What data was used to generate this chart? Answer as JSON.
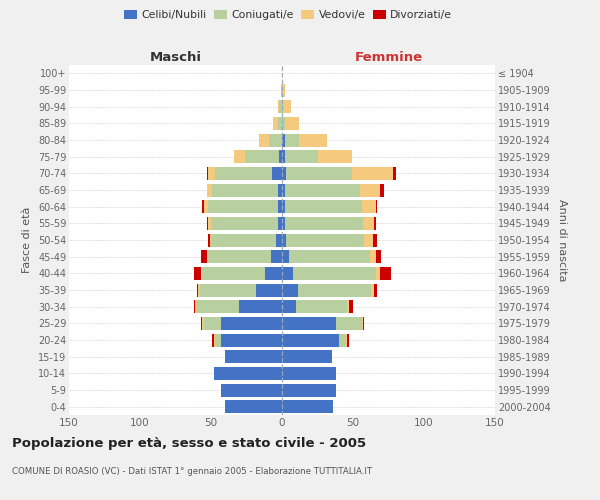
{
  "age_groups": [
    "0-4",
    "5-9",
    "10-14",
    "15-19",
    "20-24",
    "25-29",
    "30-34",
    "35-39",
    "40-44",
    "45-49",
    "50-54",
    "55-59",
    "60-64",
    "65-69",
    "70-74",
    "75-79",
    "80-84",
    "85-89",
    "90-94",
    "95-99",
    "100+"
  ],
  "birth_years": [
    "2000-2004",
    "1995-1999",
    "1990-1994",
    "1985-1989",
    "1980-1984",
    "1975-1979",
    "1970-1974",
    "1965-1969",
    "1960-1964",
    "1955-1959",
    "1950-1954",
    "1945-1949",
    "1940-1944",
    "1935-1939",
    "1930-1934",
    "1925-1929",
    "1920-1924",
    "1915-1919",
    "1910-1914",
    "1905-1909",
    "≤ 1904"
  ],
  "male_celibe": [
    40,
    43,
    48,
    40,
    43,
    43,
    30,
    18,
    12,
    8,
    4,
    3,
    3,
    3,
    7,
    2,
    0,
    0,
    0,
    0,
    0
  ],
  "male_coniugato": [
    0,
    0,
    0,
    0,
    4,
    12,
    30,
    40,
    44,
    45,
    46,
    47,
    49,
    46,
    40,
    24,
    9,
    3,
    2,
    1,
    0
  ],
  "male_vedovo": [
    0,
    0,
    0,
    0,
    1,
    1,
    1,
    1,
    1,
    0,
    1,
    2,
    3,
    4,
    5,
    8,
    7,
    3,
    1,
    0,
    0
  ],
  "male_divorziato": [
    0,
    0,
    0,
    0,
    1,
    1,
    1,
    1,
    5,
    4,
    1,
    1,
    1,
    0,
    1,
    0,
    0,
    0,
    0,
    0,
    0
  ],
  "female_celibe": [
    36,
    38,
    38,
    35,
    40,
    38,
    10,
    11,
    8,
    5,
    3,
    2,
    2,
    2,
    3,
    2,
    2,
    0,
    0,
    0,
    0
  ],
  "female_coniugata": [
    0,
    0,
    0,
    0,
    5,
    18,
    36,
    52,
    58,
    57,
    55,
    55,
    54,
    53,
    46,
    23,
    10,
    2,
    1,
    0,
    0
  ],
  "female_vedova": [
    0,
    0,
    0,
    0,
    1,
    1,
    1,
    2,
    3,
    4,
    6,
    8,
    10,
    14,
    29,
    24,
    20,
    10,
    5,
    2,
    0
  ],
  "female_divorziata": [
    0,
    0,
    0,
    0,
    1,
    1,
    3,
    2,
    8,
    4,
    3,
    1,
    1,
    3,
    2,
    0,
    0,
    0,
    0,
    0,
    0
  ],
  "color_celibe": "#4472c4",
  "color_coniugato": "#b8cfa0",
  "color_vedovo": "#f5c97e",
  "color_divorziato": "#cc0000",
  "title": "Popolazione per età, sesso e stato civile - 2005",
  "subtitle": "COMUNE DI ROASIO (VC) - Dati ISTAT 1° gennaio 2005 - Elaborazione TUTTITALIA.IT",
  "xlabel_left": "Maschi",
  "xlabel_right": "Femmine",
  "ylabel_left": "Fasce di età",
  "ylabel_right": "Anni di nascita",
  "xlim": 150,
  "bg_color": "#f0f0f0",
  "plot_bg": "#ffffff"
}
